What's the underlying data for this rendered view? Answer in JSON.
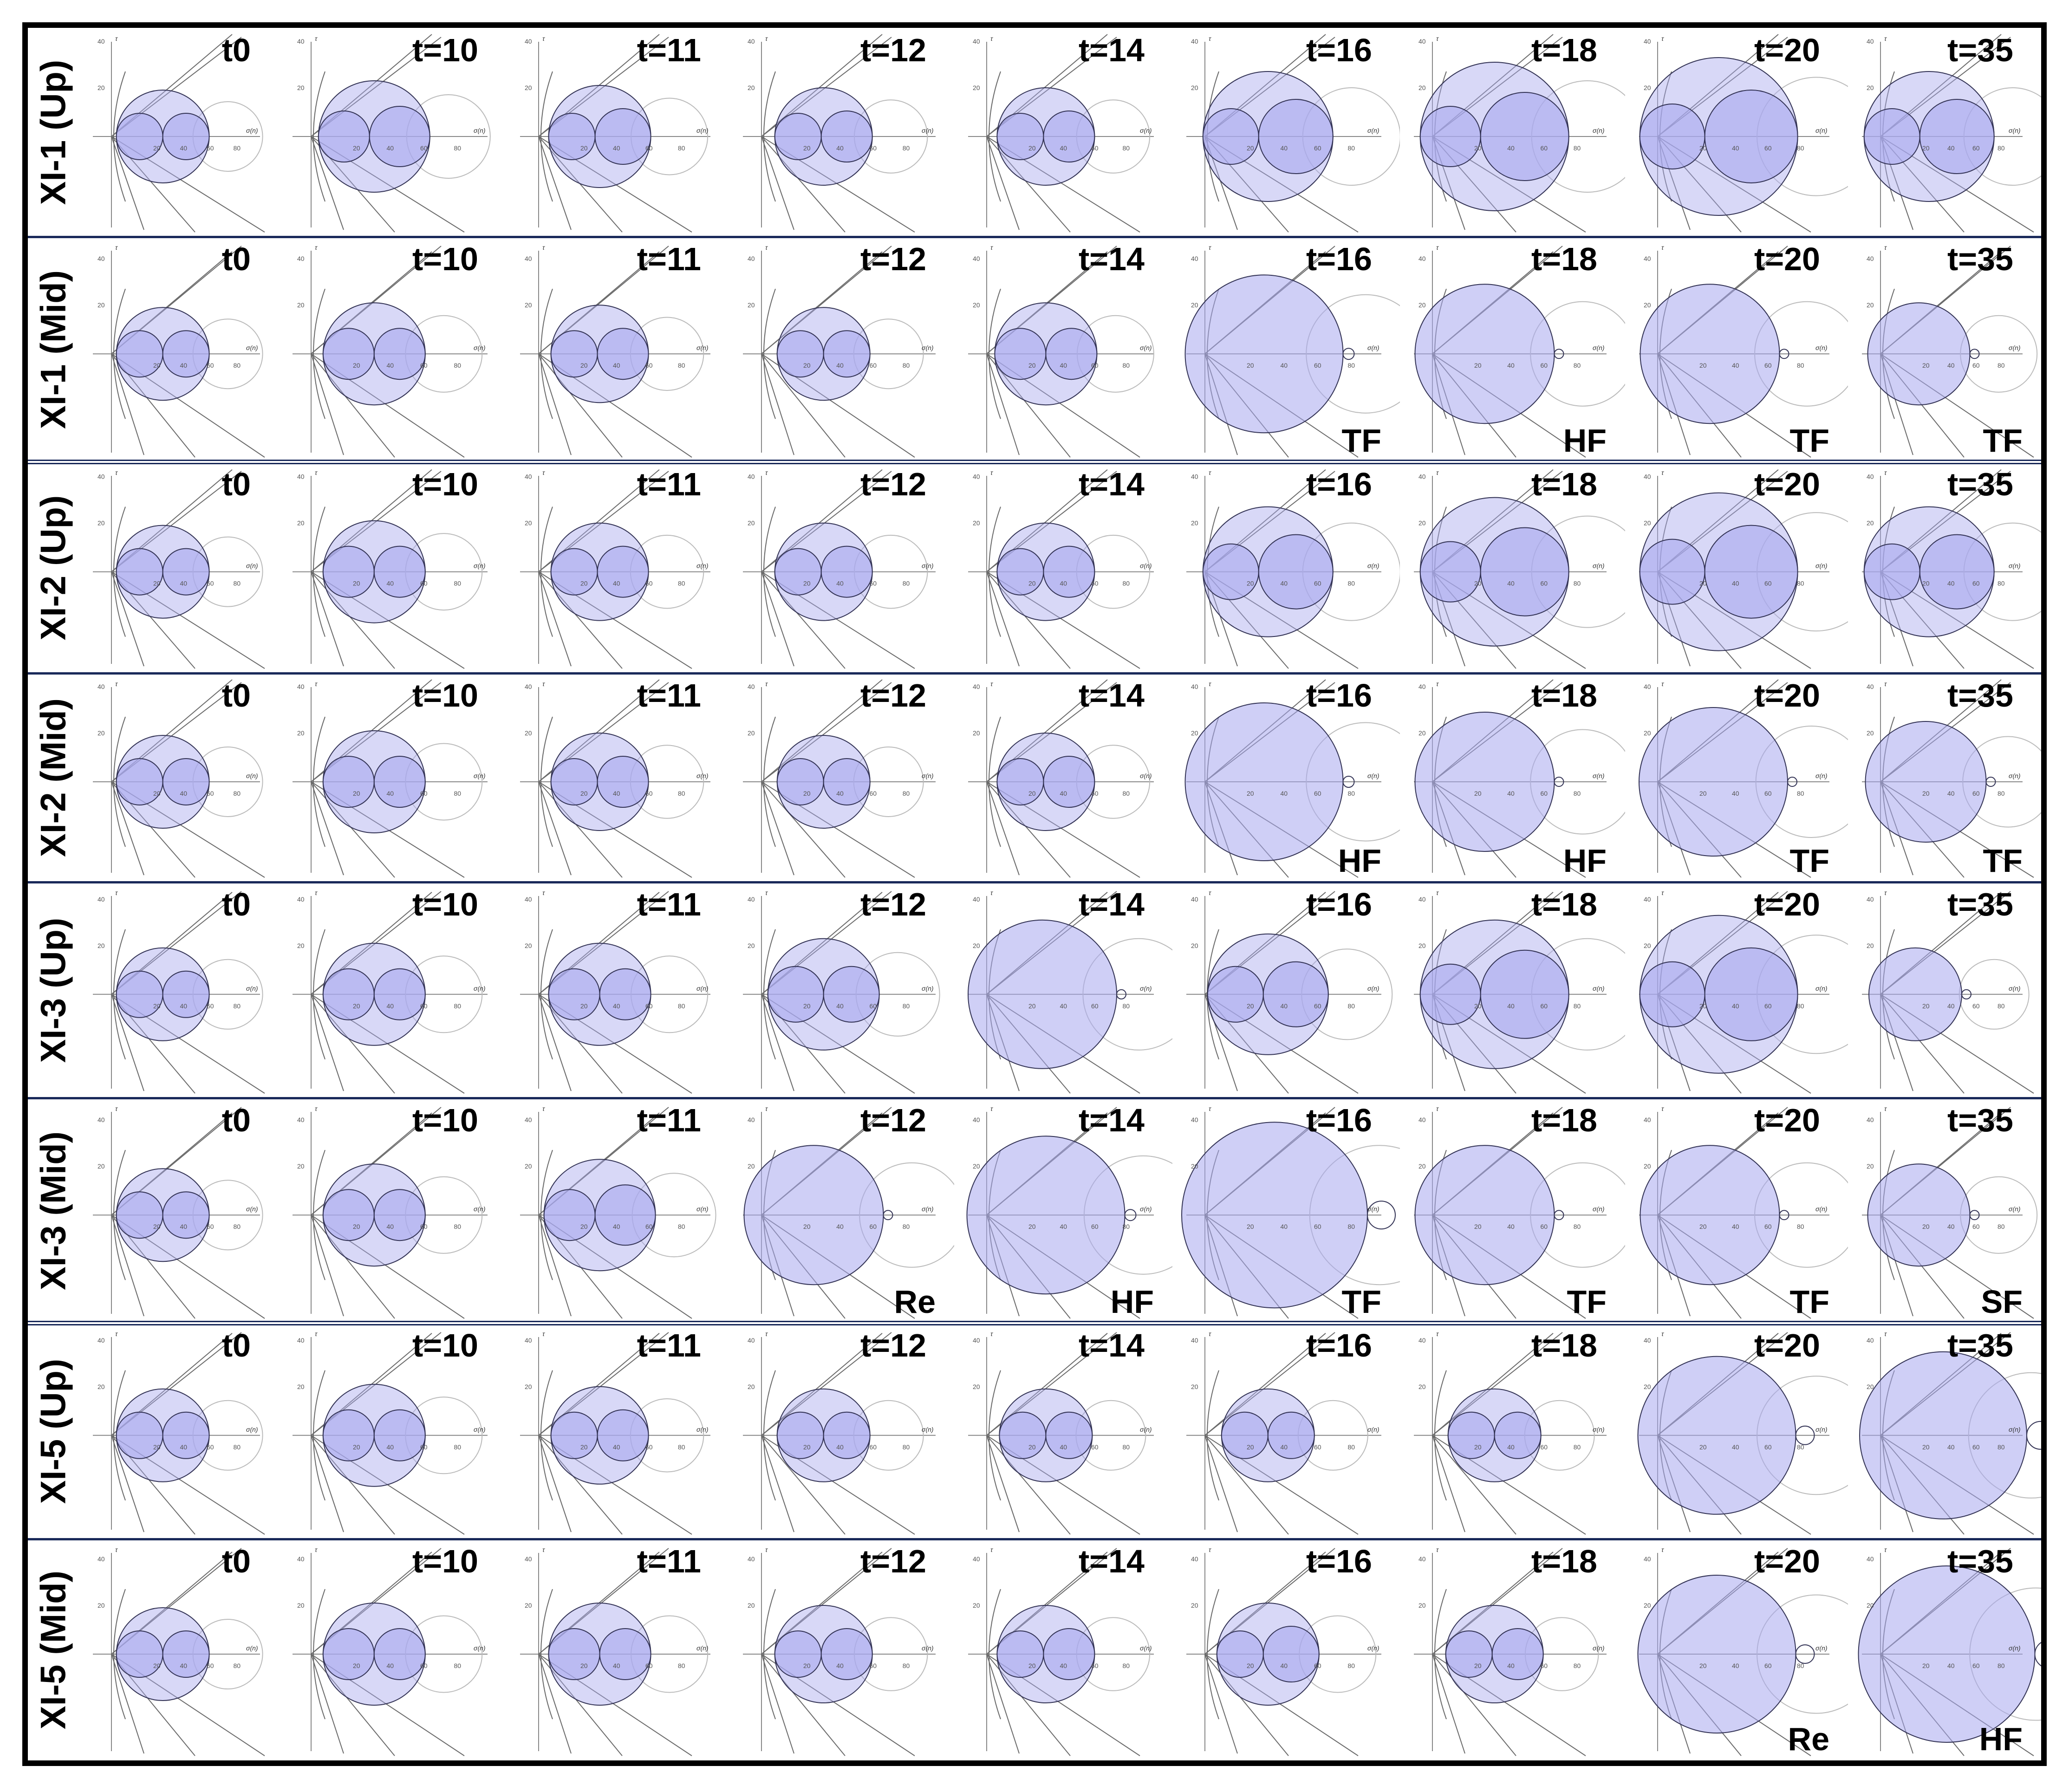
{
  "figure": {
    "rows": [
      {
        "label": "XI-1 (Up)",
        "panels": [
          {
            "time": "t0",
            "mode": ""
          },
          {
            "time": "t=10",
            "mode": ""
          },
          {
            "time": "t=11",
            "mode": ""
          },
          {
            "time": "t=12",
            "mode": ""
          },
          {
            "time": "t=14",
            "mode": ""
          },
          {
            "time": "t=16",
            "mode": ""
          },
          {
            "time": "t=18",
            "mode": ""
          },
          {
            "time": "t=20",
            "mode": ""
          },
          {
            "time": "t=35",
            "mode": ""
          }
        ]
      },
      {
        "label": "XI-1 (Mid)",
        "panels": [
          {
            "time": "t0",
            "mode": ""
          },
          {
            "time": "t=10",
            "mode": ""
          },
          {
            "time": "t=11",
            "mode": ""
          },
          {
            "time": "t=12",
            "mode": ""
          },
          {
            "time": "t=14",
            "mode": ""
          },
          {
            "time": "t=16",
            "mode": "TF"
          },
          {
            "time": "t=18",
            "mode": "HF"
          },
          {
            "time": "t=20",
            "mode": "TF"
          },
          {
            "time": "t=35",
            "mode": "TF"
          }
        ]
      },
      {
        "label": "XI-2 (Up)",
        "panels": [
          {
            "time": "t0",
            "mode": ""
          },
          {
            "time": "t=10",
            "mode": ""
          },
          {
            "time": "t=11",
            "mode": ""
          },
          {
            "time": "t=12",
            "mode": ""
          },
          {
            "time": "t=14",
            "mode": ""
          },
          {
            "time": "t=16",
            "mode": ""
          },
          {
            "time": "t=18",
            "mode": ""
          },
          {
            "time": "t=20",
            "mode": ""
          },
          {
            "time": "t=35",
            "mode": ""
          }
        ]
      },
      {
        "label": "XI-2 (Mid)",
        "panels": [
          {
            "time": "t0",
            "mode": ""
          },
          {
            "time": "t=10",
            "mode": ""
          },
          {
            "time": "t=11",
            "mode": ""
          },
          {
            "time": "t=12",
            "mode": ""
          },
          {
            "time": "t=14",
            "mode": ""
          },
          {
            "time": "t=16",
            "mode": "HF"
          },
          {
            "time": "t=18",
            "mode": "HF"
          },
          {
            "time": "t=20",
            "mode": "TF"
          },
          {
            "time": "t=35",
            "mode": "TF"
          }
        ]
      },
      {
        "label": "XI-3 (Up)",
        "panels": [
          {
            "time": "t0",
            "mode": ""
          },
          {
            "time": "t=10",
            "mode": ""
          },
          {
            "time": "t=11",
            "mode": ""
          },
          {
            "time": "t=12",
            "mode": ""
          },
          {
            "time": "t=14",
            "mode": ""
          },
          {
            "time": "t=16",
            "mode": ""
          },
          {
            "time": "t=18",
            "mode": ""
          },
          {
            "time": "t=20",
            "mode": ""
          },
          {
            "time": "t=35",
            "mode": ""
          }
        ]
      },
      {
        "label": "XI-3 (Mid)",
        "panels": [
          {
            "time": "t0",
            "mode": ""
          },
          {
            "time": "t=10",
            "mode": ""
          },
          {
            "time": "t=11",
            "mode": ""
          },
          {
            "time": "t=12",
            "mode": "Re"
          },
          {
            "time": "t=14",
            "mode": "HF"
          },
          {
            "time": "t=16",
            "mode": "TF"
          },
          {
            "time": "t=18",
            "mode": "TF"
          },
          {
            "time": "t=20",
            "mode": "TF"
          },
          {
            "time": "t=35",
            "mode": "SF"
          }
        ]
      },
      {
        "label": "XI-5 (Up)",
        "panels": [
          {
            "time": "t0",
            "mode": ""
          },
          {
            "time": "t=10",
            "mode": ""
          },
          {
            "time": "t=11",
            "mode": ""
          },
          {
            "time": "t=12",
            "mode": ""
          },
          {
            "time": "t=14",
            "mode": ""
          },
          {
            "time": "t=16",
            "mode": ""
          },
          {
            "time": "t=18",
            "mode": ""
          },
          {
            "time": "t=20",
            "mode": ""
          },
          {
            "time": "t=35",
            "mode": ""
          }
        ]
      },
      {
        "label": "XI-5 (Mid)",
        "panels": [
          {
            "time": "t0",
            "mode": ""
          },
          {
            "time": "t=10",
            "mode": ""
          },
          {
            "time": "t=11",
            "mode": ""
          },
          {
            "time": "t=12",
            "mode": ""
          },
          {
            "time": "t=14",
            "mode": ""
          },
          {
            "time": "t=16",
            "mode": ""
          },
          {
            "time": "t=18",
            "mode": ""
          },
          {
            "time": "t=20",
            "mode": "Re"
          },
          {
            "time": "t=35",
            "mode": "HF"
          }
        ]
      }
    ],
    "mohr": {
      "axis_label": "σ(n)",
      "y_axis_label": "τ",
      "x_tick_labels": [
        "20",
        "40",
        "60",
        "80"
      ],
      "y_tick_labels": [
        "20",
        "40"
      ]
    },
    "colors": {
      "circle_fill": "#a8a8ee",
      "circle_stroke": "#333355",
      "envelope": "#6a6a6a",
      "axis": "#888888",
      "separator": "#1a2a5a",
      "frame": "#000000"
    }
  }
}
